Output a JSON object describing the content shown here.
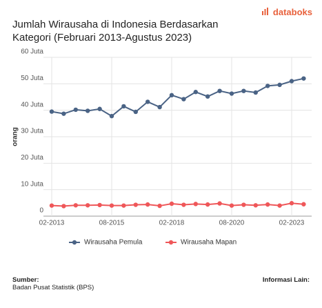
{
  "logo": "databoks",
  "chart_data": {
    "type": "line",
    "title": "Jumlah Wirausaha di Indonesia Berdasarkan Kategori (Februari 2013-Agustus 2023)",
    "y_label": "orang",
    "categories": [
      "02-2013",
      null,
      null,
      null,
      null,
      "08-2015",
      null,
      null,
      null,
      null,
      "02-2018",
      null,
      null,
      null,
      null,
      "08-2020",
      null,
      null,
      null,
      null,
      "02-2023",
      null
    ],
    "series": [
      {
        "name": "Wirausaha Pemula",
        "color": "#4a6385",
        "values": [
          39.5,
          38.7,
          40.2,
          39.8,
          40.5,
          37.8,
          41.5,
          39.4,
          43.2,
          41.2,
          45.7,
          44.2,
          46.9,
          45.2,
          47.3,
          46.3,
          47.3,
          46.7,
          49.2,
          49.6,
          51.0,
          52.0
        ]
      },
      {
        "name": "Wirausaha Mapan",
        "color": "#ef5759",
        "values": [
          4.0,
          3.8,
          4.1,
          4.1,
          4.2,
          4.0,
          4.0,
          4.3,
          4.4,
          3.9,
          4.7,
          4.3,
          4.6,
          4.4,
          4.8,
          4.0,
          4.3,
          4.1,
          4.4,
          4.0,
          4.9,
          4.5
        ]
      }
    ],
    "ylim": [
      0,
      60
    ],
    "yticks": [
      0,
      {
        "value": 10,
        "label": "10 Juta"
      },
      {
        "value": 20,
        "label": "20 Juta"
      },
      {
        "value": 30,
        "label": "30 Juta"
      },
      {
        "value": 40,
        "label": "40 Juta"
      },
      {
        "value": 50,
        "label": "50 Juta"
      },
      {
        "value": 60,
        "label": "60 Juta"
      }
    ],
    "grid": true,
    "legend": "bottom"
  },
  "footer": {
    "source_label": "Sumber:",
    "source": "Badan Pusat Statistik (BPS)",
    "info_label": "Informasi Lain:"
  }
}
